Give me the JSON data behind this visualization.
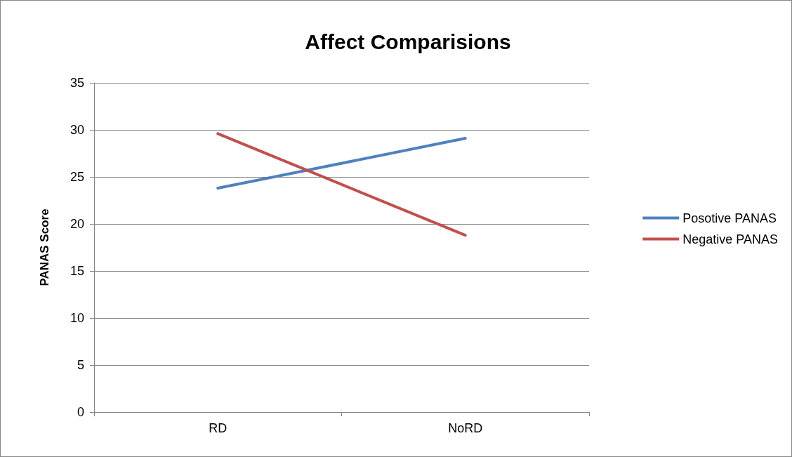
{
  "chart_data": {
    "type": "line",
    "title": "Affect Comparisions",
    "ylabel": "PANAS Score",
    "categories": [
      "RD",
      "NoRD"
    ],
    "series": [
      {
        "name": "Posotive PANAS",
        "color": "#4f81bd",
        "values": [
          23.8,
          29.1
        ]
      },
      {
        "name": "Negative PANAS",
        "color": "#c0504d",
        "values": [
          29.6,
          18.8
        ]
      }
    ],
    "ylim": [
      0,
      35
    ],
    "yticks": [
      0,
      5,
      10,
      15,
      20,
      25,
      30,
      35
    ],
    "grid": "y",
    "legend": "right",
    "marker": "none",
    "line_style": "solid"
  }
}
